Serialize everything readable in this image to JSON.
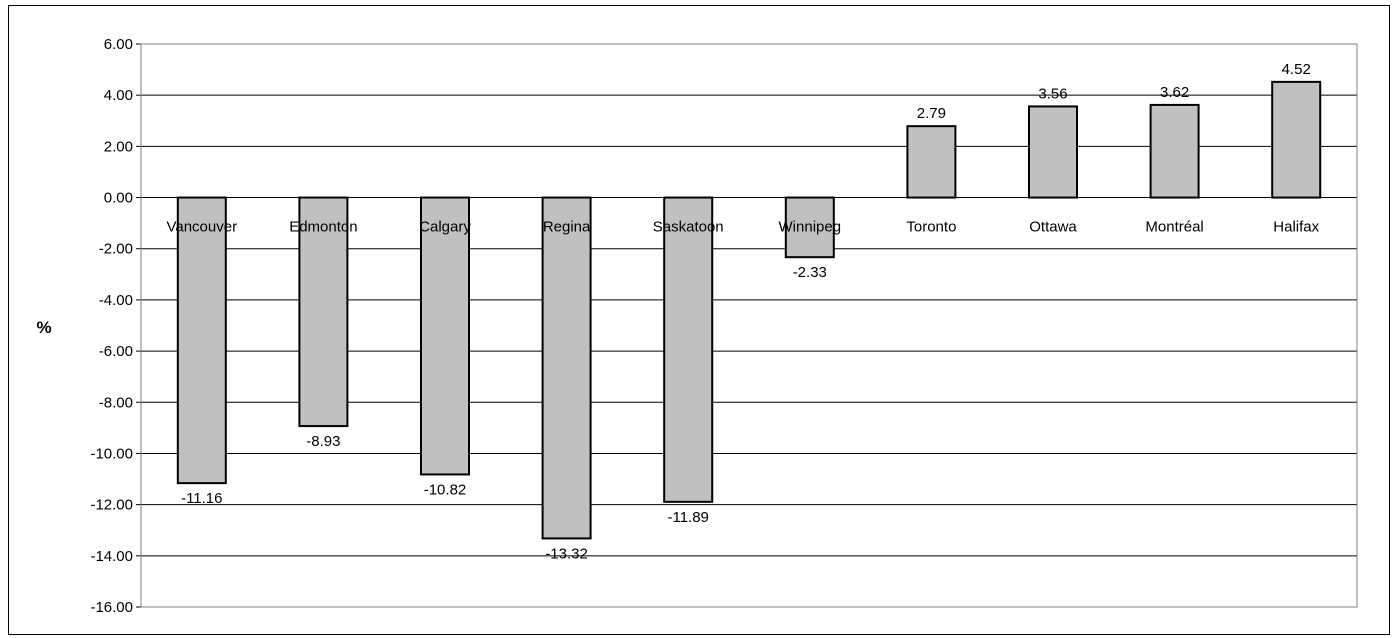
{
  "chart_data": {
    "type": "bar",
    "title": "",
    "xlabel": "",
    "ylabel": "%",
    "ylim": [
      -16,
      6
    ],
    "y_ticks": [
      "6.00",
      "4.00",
      "2.00",
      "0.00",
      "-2.00",
      "-4.00",
      "-6.00",
      "-8.00",
      "-10.00",
      "-12.00",
      "-14.00",
      "-16.00"
    ],
    "categories": [
      "Vancouver",
      "Edmonton",
      "Calgary",
      "Regina",
      "Saskatoon",
      "Winnipeg",
      "Toronto",
      "Ottawa",
      "Montréal",
      "Halifax"
    ],
    "values": [
      -11.16,
      -8.93,
      -10.82,
      -13.32,
      -11.89,
      -2.33,
      2.79,
      3.56,
      3.62,
      4.52
    ],
    "data_labels": [
      "-11.16",
      "-8.93",
      "-10.82",
      "-13.32",
      "-11.89",
      "-2.33",
      "2.79",
      "3.56",
      "3.62",
      "4.52"
    ],
    "grid": true,
    "legend": "none",
    "colors": {
      "bar_fill": "#c0c0c0",
      "bar_stroke": "#000000",
      "grid": "#000000"
    }
  }
}
